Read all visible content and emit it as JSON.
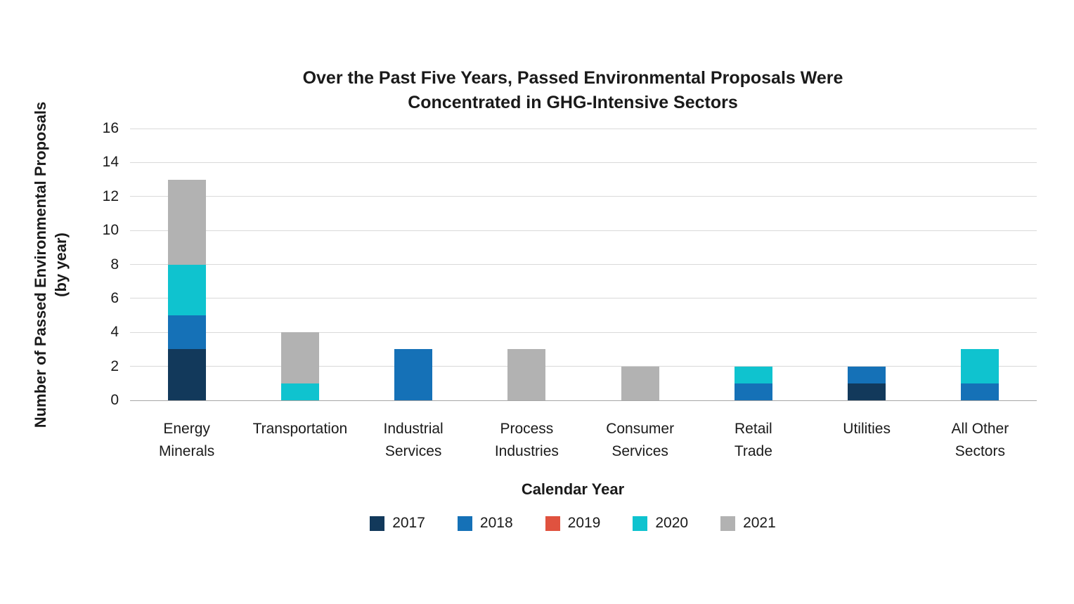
{
  "chart_data": {
    "type": "bar",
    "stacked": true,
    "title_lines": [
      "Over the Past Five Years, Passed Environmental Proposals Were",
      "Concentrated in GHG-Intensive Sectors"
    ],
    "xlabel": "Calendar Year",
    "ylabel": "Number of Passed Environmental Proposals (by year)",
    "ylim": [
      0,
      16
    ],
    "ytick_step": 2,
    "grid": "horizontal",
    "legend_position": "bottom",
    "categories": [
      "Energy Minerals",
      "Transportation",
      "Industrial Services",
      "Process Industries",
      "Consumer Services",
      "Retail Trade",
      "Utilities",
      "All Other Sectors"
    ],
    "category_display_lines": [
      [
        "Energy",
        "Minerals"
      ],
      [
        "Transportation"
      ],
      [
        "Industrial",
        "Services"
      ],
      [
        "Process",
        "Industries"
      ],
      [
        "Consumer",
        "Services"
      ],
      [
        "Retail",
        "Trade"
      ],
      [
        "Utilities"
      ],
      [
        "All Other",
        "Sectors"
      ]
    ],
    "series": [
      {
        "name": "2017",
        "color": "#12395b",
        "values": [
          3,
          0,
          0,
          0,
          0,
          0,
          1,
          0
        ]
      },
      {
        "name": "2018",
        "color": "#1571b7",
        "values": [
          2,
          0,
          3,
          0,
          0,
          1,
          1,
          1
        ]
      },
      {
        "name": "2019",
        "color": "#e0523f",
        "values": [
          0,
          0,
          0,
          0,
          0,
          0,
          0,
          0
        ]
      },
      {
        "name": "2020",
        "color": "#0fc3cf",
        "values": [
          3,
          1,
          0,
          0,
          0,
          1,
          0,
          2
        ]
      },
      {
        "name": "2021",
        "color": "#b2b2b2",
        "values": [
          5,
          3,
          0,
          3,
          2,
          0,
          0,
          0
        ]
      }
    ],
    "colors": {
      "gridline": "#d9d9d9",
      "axis_line": "#a6a6a6",
      "text": "#1a1a1a"
    }
  }
}
